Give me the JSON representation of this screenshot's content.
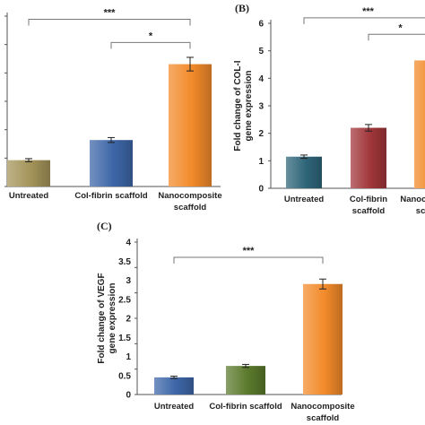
{
  "colors": {
    "gold": "#a4945a",
    "blue": "#3d66a8",
    "orange": "#f28a2a",
    "teal": "#2e6578",
    "red": "#a0363a",
    "green": "#5b7a2c",
    "axis": "#555555",
    "bracket": "#777777"
  },
  "chart_data": [
    {
      "type": "bar",
      "panel": "",
      "categories": [
        "Untreated",
        "Col-fibrin scaffold",
        "Nanocomposite scaffold"
      ],
      "values": [
        0.85,
        1.5,
        3.95
      ],
      "errors": [
        0.05,
        0.08,
        0.22
      ],
      "colors": [
        "gold",
        "blue",
        "orange"
      ],
      "ylabel": "",
      "ylim": [
        0,
        5.5
      ],
      "yticks": [],
      "significance": [
        {
          "from": 0,
          "to": 2,
          "label": "***",
          "level": 5.4
        },
        {
          "from": 1,
          "to": 2,
          "label": "*",
          "level": 4.65
        }
      ]
    },
    {
      "type": "bar",
      "panel": "(B)",
      "categories": [
        "Untreated",
        "Col-fibrin scaffold",
        "Nanocomposite scaffold"
      ],
      "values": [
        1.15,
        2.2,
        4.65
      ],
      "errors": [
        0.06,
        0.12,
        0.2
      ],
      "colors": [
        "teal",
        "red",
        "orange"
      ],
      "ylabel": "Fold change of COL-I gene expression",
      "ylim": [
        0,
        6
      ],
      "yticks": [
        0,
        1,
        2,
        3,
        4,
        5,
        6
      ],
      "significance": [
        {
          "from": 0,
          "to": 2,
          "label": "***",
          "level": 6.2
        },
        {
          "from": 1,
          "to": 2,
          "label": "*",
          "level": 5.6
        }
      ]
    },
    {
      "type": "bar",
      "panel": "(C)",
      "categories": [
        "Untreated",
        "Col-fibrin scaffold",
        "Nanocomposite scaffold"
      ],
      "values": [
        0.45,
        0.75,
        2.9
      ],
      "errors": [
        0.03,
        0.04,
        0.13
      ],
      "colors": [
        "blue",
        "green",
        "orange"
      ],
      "ylabel": "Fold change of VEGF gene expression",
      "ylim": [
        0,
        4
      ],
      "yticks": [
        0,
        0.5,
        1,
        1.5,
        2,
        2.5,
        3,
        3.5,
        4
      ],
      "significance": [
        {
          "from": 0,
          "to": 2,
          "label": "***",
          "level": 3.6
        }
      ]
    }
  ]
}
